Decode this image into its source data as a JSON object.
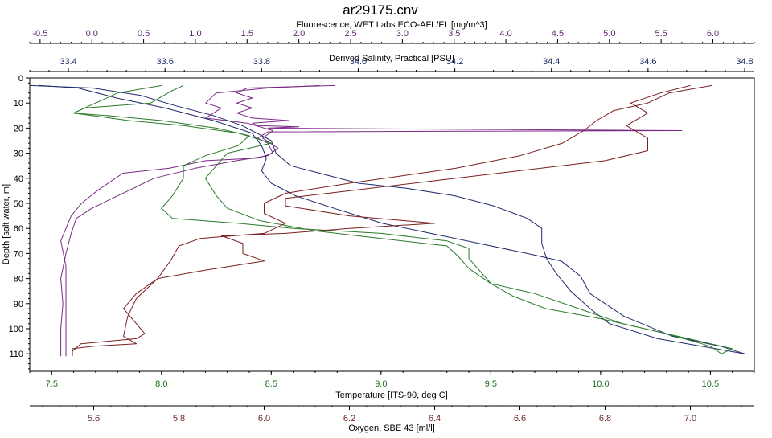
{
  "chart_data": {
    "type": "line",
    "title": "ar29175.cnv",
    "grid": false,
    "legend": "none",
    "y_axis": {
      "label": "Depth [salt water, m]",
      "range": [
        0,
        117
      ],
      "inverted": true,
      "ticks": [
        0,
        10,
        20,
        30,
        40,
        50,
        60,
        70,
        80,
        90,
        100,
        110
      ]
    },
    "x_axes": [
      {
        "id": "fluorescence",
        "position": "top-outer",
        "label": "Fluorescence, WET Labs ECO-AFL/FL [mg/m^3]",
        "color": "#5a1f6e",
        "range": [
          -0.6,
          6.4
        ],
        "ticks": [
          -0.5,
          0,
          0.5,
          1,
          1.5,
          2,
          2.5,
          3,
          3.5,
          4,
          4.5,
          5,
          5.5,
          6
        ],
        "tick_labels": [
          "-0.5",
          "0.0",
          "0.5",
          "1.0",
          "1.5",
          "2.0",
          "2.5",
          "3.0",
          "3.5",
          "4.0",
          "4.5",
          "5.0",
          "5.5",
          "6.0"
        ]
      },
      {
        "id": "salinity",
        "position": "top-inner",
        "label": "Derived Salinity, Practical [PSU]",
        "color": "#1f2a6b",
        "range": [
          33.32,
          34.82
        ],
        "ticks": [
          33.4,
          33.6,
          33.8,
          34.0,
          34.2,
          34.4,
          34.6,
          34.8
        ],
        "tick_labels": [
          "33.4",
          "33.6",
          "33.8",
          "34.0",
          "34.2",
          "34.4",
          "34.6",
          "34.8"
        ]
      },
      {
        "id": "temperature",
        "position": "bottom-inner",
        "label": "Temperature [ITS-90, deg C]",
        "color": "#1f6e1f",
        "range": [
          7.4,
          10.7
        ],
        "ticks": [
          7.5,
          8.0,
          8.5,
          9.0,
          9.5,
          10.0,
          10.5
        ],
        "tick_labels": [
          "7.5",
          "8.0",
          "8.5",
          "9.0",
          "9.5",
          "10.0",
          "10.5"
        ]
      },
      {
        "id": "oxygen",
        "position": "bottom-outer",
        "label": "Oxygen, SBE 43 [ml/l]",
        "color": "#6e1f1f",
        "range": [
          5.45,
          7.15
        ],
        "ticks": [
          5.6,
          5.8,
          6.0,
          6.2,
          6.4,
          6.6,
          6.8,
          7.0
        ],
        "tick_labels": [
          "5.6",
          "5.8",
          "6.0",
          "6.2",
          "6.4",
          "6.6",
          "6.8",
          "7.0"
        ]
      }
    ],
    "series": [
      {
        "axis": "fluorescence",
        "color": "#7a2a85",
        "note": "two traces (downcast + upcast)",
        "traces": [
          [
            [
              2.35,
              3
            ],
            [
              1.5,
              4
            ],
            [
              1.4,
              6
            ],
            [
              1.55,
              8
            ],
            [
              1.4,
              10
            ],
            [
              1.55,
              12
            ],
            [
              1.4,
              14
            ],
            [
              1.55,
              16
            ],
            [
              1.9,
              17
            ],
            [
              1.55,
              18
            ],
            [
              1.6,
              19
            ],
            [
              2.0,
              19.5
            ],
            [
              1.7,
              20
            ],
            [
              5.7,
              21
            ],
            [
              1.7,
              21.5
            ],
            [
              1.6,
              24
            ],
            [
              1.7,
              26
            ],
            [
              1.75,
              30
            ],
            [
              1.6,
              32
            ],
            [
              1.1,
              33
            ],
            [
              0.75,
              36
            ],
            [
              0.3,
              38
            ],
            [
              0.05,
              45
            ],
            [
              -0.1,
              50
            ],
            [
              -0.2,
              55
            ],
            [
              -0.25,
              60
            ],
            [
              -0.3,
              65
            ],
            [
              -0.25,
              75
            ],
            [
              -0.25,
              90
            ],
            [
              -0.25,
              100
            ],
            [
              -0.25,
              111
            ]
          ],
          [
            [
              2.2,
              3
            ],
            [
              1.7,
              4
            ],
            [
              1.2,
              6
            ],
            [
              1.1,
              10
            ],
            [
              1.25,
              12
            ],
            [
              1.1,
              16
            ],
            [
              1.5,
              18
            ],
            [
              1.75,
              21
            ],
            [
              1.65,
              24
            ],
            [
              1.8,
              28
            ],
            [
              1.7,
              31
            ],
            [
              1.4,
              33
            ],
            [
              1.0,
              36
            ],
            [
              0.6,
              40
            ],
            [
              0.4,
              44
            ],
            [
              0.2,
              48
            ],
            [
              0.0,
              52
            ],
            [
              -0.15,
              56
            ],
            [
              -0.2,
              62
            ],
            [
              -0.25,
              70
            ],
            [
              -0.3,
              80
            ],
            [
              -0.28,
              90
            ],
            [
              -0.3,
              100
            ],
            [
              -0.3,
              111
            ]
          ]
        ]
      },
      {
        "axis": "salinity",
        "color": "#1f2a6b",
        "note": "two traces (downcast + upcast)",
        "traces": [
          [
            [
              33.34,
              3
            ],
            [
              33.42,
              4
            ],
            [
              33.5,
              8
            ],
            [
              33.6,
              12
            ],
            [
              33.7,
              17
            ],
            [
              33.78,
              22
            ],
            [
              33.8,
              27
            ],
            [
              33.81,
              32
            ],
            [
              33.8,
              37
            ],
            [
              33.82,
              42
            ],
            [
              33.87,
              47
            ],
            [
              33.95,
              52
            ],
            [
              34.05,
              58
            ],
            [
              34.15,
              62
            ],
            [
              34.25,
              66
            ],
            [
              34.35,
              70
            ],
            [
              34.42,
              73
            ],
            [
              34.46,
              79
            ],
            [
              34.48,
              86
            ],
            [
              34.55,
              95
            ],
            [
              34.65,
              103
            ],
            [
              34.75,
              107
            ],
            [
              34.8,
              110
            ]
          ],
          [
            [
              33.32,
              3
            ],
            [
              33.45,
              4
            ],
            [
              33.55,
              7
            ],
            [
              33.62,
              11
            ],
            [
              33.7,
              15
            ],
            [
              33.76,
              19
            ],
            [
              33.82,
              25
            ],
            [
              33.83,
              30
            ],
            [
              33.86,
              35
            ],
            [
              33.92,
              38
            ],
            [
              34.0,
              42
            ],
            [
              34.1,
              44
            ],
            [
              34.2,
              47
            ],
            [
              34.28,
              51
            ],
            [
              34.35,
              56
            ],
            [
              34.38,
              60
            ],
            [
              34.38,
              66
            ],
            [
              34.39,
              72
            ],
            [
              34.41,
              78
            ],
            [
              34.44,
              85
            ],
            [
              34.48,
              92
            ],
            [
              34.52,
              98
            ],
            [
              34.62,
              104
            ],
            [
              34.74,
              108
            ],
            [
              34.8,
              110
            ]
          ]
        ]
      },
      {
        "axis": "temperature",
        "color": "#2a7a2a",
        "note": "two traces (downcast + upcast)",
        "traces": [
          [
            [
              8.1,
              3
            ],
            [
              8.05,
              5
            ],
            [
              7.95,
              10
            ],
            [
              7.65,
              12
            ],
            [
              7.6,
              14
            ],
            [
              7.75,
              15
            ],
            [
              8.0,
              17
            ],
            [
              8.25,
              20
            ],
            [
              8.4,
              23
            ],
            [
              8.35,
              27
            ],
            [
              8.2,
              31
            ],
            [
              8.1,
              35
            ],
            [
              8.1,
              40
            ],
            [
              8.05,
              47
            ],
            [
              8.0,
              52
            ],
            [
              8.05,
              56
            ],
            [
              8.35,
              58
            ],
            [
              8.6,
              60
            ],
            [
              9.0,
              62
            ],
            [
              9.3,
              65
            ],
            [
              9.4,
              68
            ],
            [
              9.4,
              72
            ],
            [
              9.45,
              77
            ],
            [
              9.5,
              82
            ],
            [
              9.6,
              87
            ],
            [
              9.75,
              92
            ],
            [
              10.0,
              96
            ],
            [
              10.3,
              102
            ],
            [
              10.5,
              107
            ],
            [
              10.55,
              110
            ]
          ],
          [
            [
              8.0,
              3
            ],
            [
              7.8,
              6
            ],
            [
              7.7,
              10
            ],
            [
              7.6,
              14
            ],
            [
              7.85,
              17
            ],
            [
              8.1,
              19
            ],
            [
              8.35,
              22
            ],
            [
              8.5,
              26
            ],
            [
              8.3,
              30
            ],
            [
              8.25,
              35
            ],
            [
              8.2,
              40
            ],
            [
              8.25,
              47
            ],
            [
              8.3,
              52
            ],
            [
              8.45,
              57
            ],
            [
              8.7,
              61
            ],
            [
              9.0,
              64
            ],
            [
              9.3,
              67
            ],
            [
              9.35,
              71
            ],
            [
              9.4,
              76
            ],
            [
              9.5,
              82
            ],
            [
              9.7,
              86
            ],
            [
              9.9,
              92
            ],
            [
              10.1,
              98
            ],
            [
              10.4,
              104
            ],
            [
              10.6,
              108
            ],
            [
              10.55,
              110
            ]
          ]
        ]
      },
      {
        "axis": "oxygen",
        "color": "#7a1f1f",
        "note": "two traces (downcast + upcast)",
        "traces": [
          [
            [
              7.05,
              3
            ],
            [
              6.95,
              6
            ],
            [
              6.9,
              10
            ],
            [
              6.82,
              13
            ],
            [
              6.78,
              17
            ],
            [
              6.75,
              21
            ],
            [
              6.7,
              26
            ],
            [
              6.6,
              31
            ],
            [
              6.45,
              36
            ],
            [
              6.2,
              42
            ],
            [
              6.05,
              46
            ],
            [
              6.0,
              50
            ],
            [
              6.0,
              54
            ],
            [
              6.05,
              58
            ],
            [
              6.0,
              62
            ],
            [
              5.85,
              64
            ],
            [
              5.8,
              67
            ],
            [
              5.78,
              73
            ],
            [
              5.75,
              80
            ],
            [
              5.7,
              88
            ],
            [
              5.68,
              95
            ],
            [
              5.67,
              103
            ],
            [
              5.7,
              106
            ],
            [
              5.6,
              107
            ],
            [
              5.55,
              108
            ],
            [
              5.55,
              110
            ]
          ],
          [
            [
              7.0,
              3
            ],
            [
              6.93,
              6
            ],
            [
              6.86,
              10
            ],
            [
              6.9,
              14
            ],
            [
              6.85,
              19
            ],
            [
              6.9,
              24
            ],
            [
              6.9,
              29
            ],
            [
              6.8,
              33
            ],
            [
              6.6,
              37
            ],
            [
              6.4,
              41
            ],
            [
              6.2,
              45
            ],
            [
              6.05,
              48
            ],
            [
              6.05,
              51
            ],
            [
              6.2,
              55
            ],
            [
              6.4,
              58
            ],
            [
              6.2,
              60
            ],
            [
              6.05,
              62
            ],
            [
              5.9,
              63
            ],
            [
              5.95,
              66
            ],
            [
              5.95,
              70
            ],
            [
              6.0,
              73
            ],
            [
              5.85,
              77
            ],
            [
              5.75,
              80
            ],
            [
              5.7,
              86
            ],
            [
              5.67,
              92
            ],
            [
              5.7,
              98
            ],
            [
              5.72,
              102
            ],
            [
              5.7,
              104
            ],
            [
              5.57,
              106
            ],
            [
              5.55,
              109
            ],
            [
              5.55,
              111
            ]
          ]
        ]
      }
    ]
  }
}
